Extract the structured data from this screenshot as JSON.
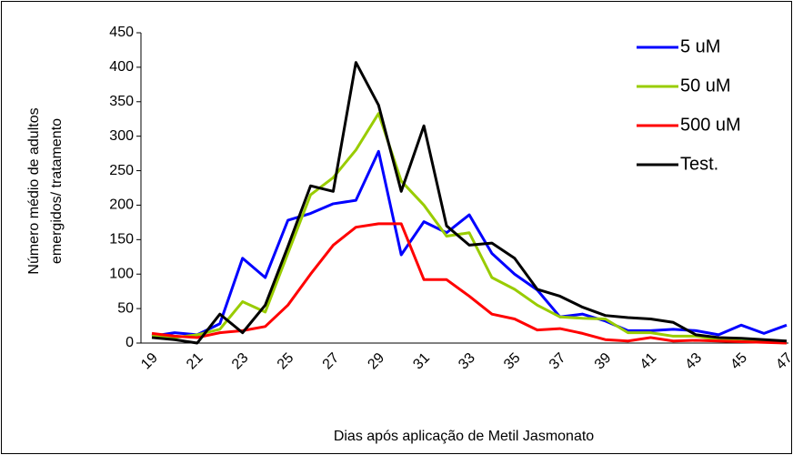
{
  "chart_data": {
    "type": "line",
    "y_label": [
      "Número médio de adultos",
      "emergidos/ tratamento"
    ],
    "x_label": "Dias após aplicação de Metil Jasmonato",
    "categories": [
      "19",
      null,
      "21",
      null,
      "23",
      null,
      "25",
      null,
      "27",
      null,
      "29",
      null,
      "31",
      null,
      "33",
      null,
      "35",
      null,
      "37",
      null,
      "39",
      null,
      "41",
      null,
      "43",
      null,
      "45",
      null,
      "47"
    ],
    "ylim": [
      0,
      450
    ],
    "yticks": [
      0,
      50,
      100,
      150,
      200,
      250,
      300,
      350,
      400,
      450
    ],
    "legend": "top-right",
    "series": [
      {
        "name": "5 uM",
        "color": "#0000ff",
        "values": [
          10,
          15,
          12,
          28,
          123,
          95,
          178,
          188,
          202,
          207,
          278,
          128,
          176,
          160,
          186,
          130,
          100,
          77,
          38,
          42,
          32,
          18,
          18,
          20,
          18,
          12,
          26,
          14,
          26
        ]
      },
      {
        "name": "50 uM",
        "color": "#99cc00",
        "values": [
          10,
          8,
          12,
          20,
          60,
          45,
          130,
          215,
          240,
          280,
          333,
          235,
          200,
          155,
          160,
          95,
          78,
          55,
          38,
          36,
          35,
          15,
          15,
          10,
          10,
          5,
          3,
          2,
          0
        ]
      },
      {
        "name": "500 uM",
        "color": "#ff0000",
        "values": [
          14,
          10,
          8,
          15,
          18,
          24,
          55,
          100,
          142,
          168,
          173,
          173,
          92,
          92,
          68,
          42,
          35,
          19,
          21,
          14,
          5,
          3,
          8,
          3,
          4,
          3,
          2,
          1,
          0
        ]
      },
      {
        "name": "Test.",
        "color": "#000000",
        "values": [
          8,
          5,
          0,
          42,
          15,
          55,
          140,
          228,
          220,
          407,
          345,
          220,
          315,
          170,
          142,
          145,
          123,
          78,
          68,
          52,
          40,
          37,
          35,
          30,
          12,
          8,
          7,
          5,
          3
        ]
      }
    ]
  }
}
